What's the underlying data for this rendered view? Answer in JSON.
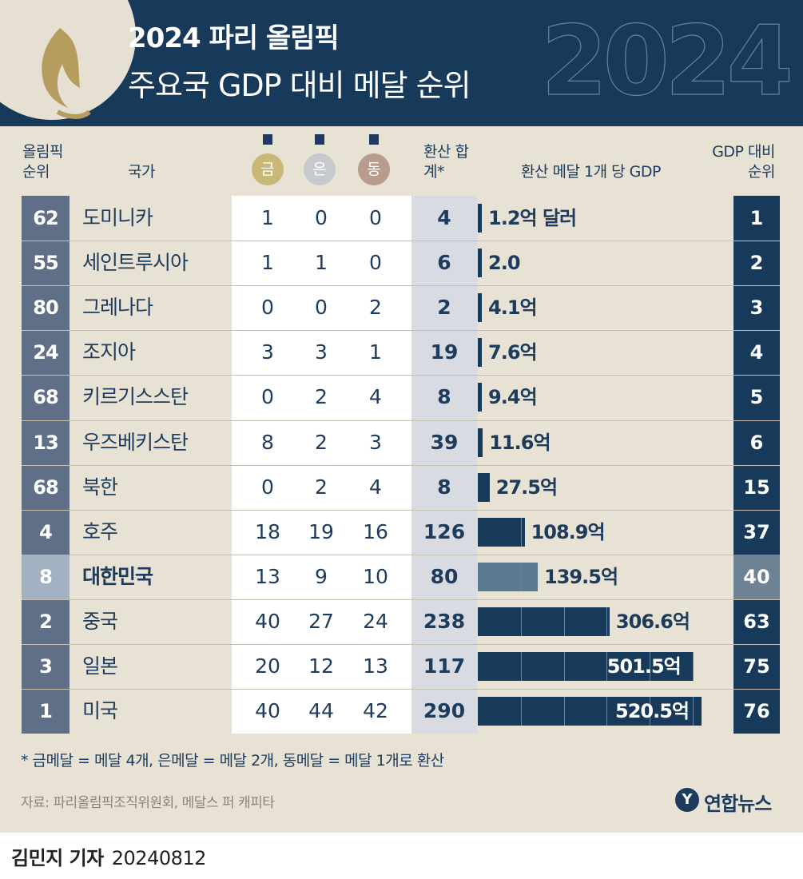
{
  "header": {
    "title": "2024 파리 올림픽",
    "subtitle": "주요국 GDP 대비 메달 순위",
    "deco_text": "2024"
  },
  "columns": {
    "olympic_rank": "올림픽 순위",
    "country": "국가",
    "gold": "금",
    "silver": "은",
    "bronze": "동",
    "total": "환산 합계*",
    "gdp_per_medal": "환산 메달 1개 당 GDP",
    "gdp_rank": "GDP 대비 순위"
  },
  "colors": {
    "navy": "#173a5a",
    "rank_col": "#5f6f88",
    "highlight": "#a3b2c2",
    "highlight_bar": "#5b7a92",
    "gold": "#c8b877",
    "silver": "#c6cace",
    "bronze": "#b89c8d",
    "background": "#e7e2d4"
  },
  "chart_data": {
    "type": "table",
    "unit": "억 달러",
    "highlight_country": "대한민국",
    "rows": [
      {
        "olympic_rank": "62",
        "country": "도미니카",
        "gold": 1,
        "silver": 0,
        "bronze": 0,
        "total": 4,
        "gdp_value": 1.2,
        "gdp_label": "1.2억 달러",
        "gdp_rank": "1"
      },
      {
        "olympic_rank": "55",
        "country": "세인트루시아",
        "gold": 1,
        "silver": 1,
        "bronze": 0,
        "total": 6,
        "gdp_value": 2.0,
        "gdp_label": "2.0",
        "gdp_rank": "2"
      },
      {
        "olympic_rank": "80",
        "country": "그레나다",
        "gold": 0,
        "silver": 0,
        "bronze": 2,
        "total": 2,
        "gdp_value": 4.1,
        "gdp_label": "4.1억",
        "gdp_rank": "3"
      },
      {
        "olympic_rank": "24",
        "country": "조지아",
        "gold": 3,
        "silver": 3,
        "bronze": 1,
        "total": 19,
        "gdp_value": 7.6,
        "gdp_label": "7.6억",
        "gdp_rank": "4"
      },
      {
        "olympic_rank": "68",
        "country": "키르기스스탄",
        "gold": 0,
        "silver": 2,
        "bronze": 4,
        "total": 8,
        "gdp_value": 9.4,
        "gdp_label": "9.4억",
        "gdp_rank": "5"
      },
      {
        "olympic_rank": "13",
        "country": "우즈베키스탄",
        "gold": 8,
        "silver": 2,
        "bronze": 3,
        "total": 39,
        "gdp_value": 11.6,
        "gdp_label": "11.6억",
        "gdp_rank": "6"
      },
      {
        "olympic_rank": "68",
        "country": "북한",
        "gold": 0,
        "silver": 2,
        "bronze": 4,
        "total": 8,
        "gdp_value": 27.5,
        "gdp_label": "27.5억",
        "gdp_rank": "15"
      },
      {
        "olympic_rank": "4",
        "country": "호주",
        "gold": 18,
        "silver": 19,
        "bronze": 16,
        "total": 126,
        "gdp_value": 108.9,
        "gdp_label": "108.9억",
        "gdp_rank": "37"
      },
      {
        "olympic_rank": "8",
        "country": "대한민국",
        "gold": 13,
        "silver": 9,
        "bronze": 10,
        "total": 80,
        "gdp_value": 139.5,
        "gdp_label": "139.5억",
        "gdp_rank": "40"
      },
      {
        "olympic_rank": "2",
        "country": "중국",
        "gold": 40,
        "silver": 27,
        "bronze": 24,
        "total": 238,
        "gdp_value": 306.6,
        "gdp_label": "306.6억",
        "gdp_rank": "63"
      },
      {
        "olympic_rank": "3",
        "country": "일본",
        "gold": 20,
        "silver": 12,
        "bronze": 13,
        "total": 117,
        "gdp_value": 501.5,
        "gdp_label": "501.5억",
        "gdp_rank": "75"
      },
      {
        "olympic_rank": "1",
        "country": "미국",
        "gold": 40,
        "silver": 44,
        "bronze": 42,
        "total": 290,
        "gdp_value": 520.5,
        "gdp_label": "520.5억",
        "gdp_rank": "76"
      }
    ]
  },
  "footnote": "* 금메달 = 메달 4개, 은메달 = 메달 2개, 동메달 = 메달 1개로 환산",
  "source": "자료: 파리올림픽조직위원회, 메달스 퍼 캐피타",
  "agency": {
    "symbol": "Y",
    "name": "연합뉴스"
  },
  "byline": {
    "name": "김민지 기자",
    "date": "20240812"
  }
}
